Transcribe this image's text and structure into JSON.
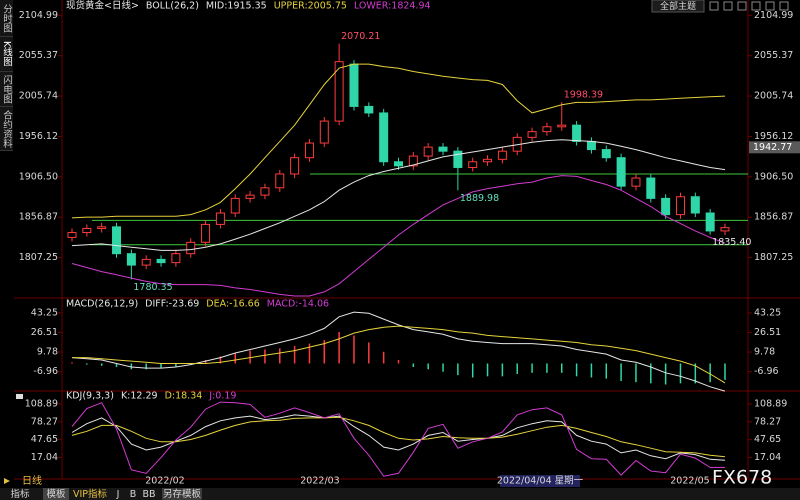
{
  "app": {
    "tabs": [
      "分时图",
      "K线图",
      "闪电图",
      "合约资料"
    ],
    "theme_button": "全部主题",
    "period": "日线",
    "toolbar": [
      "指标",
      "模板",
      "VIP指标",
      "J",
      "B",
      "BB",
      "另存模板"
    ],
    "x_labels": [
      "2022/02",
      "2022/03",
      "2022/04/04 星期一",
      "2022/05"
    ],
    "watermark": "FX678"
  },
  "chart_data": [
    {
      "type": "candlestick",
      "title": "现货黄金<日线>",
      "indicator": "BOLL(26,2)",
      "up_color": "#ff3b3b",
      "down_color": "#2fd6a8",
      "open": [
        1832,
        1838,
        1843,
        1845,
        1812,
        1798,
        1805,
        1801,
        1812,
        1826,
        1848,
        1862,
        1880,
        1884,
        1893,
        1910,
        1930,
        1948,
        1975,
        2045,
        1993,
        1985,
        1925,
        1920,
        1932,
        1943,
        1938,
        1918,
        1925,
        1928,
        1938,
        1955,
        1962,
        1968,
        1970,
        1950,
        1940,
        1930,
        1895,
        1905,
        1880,
        1860,
        1882,
        1862,
        1840
      ],
      "high": [
        1843,
        1848,
        1850,
        1850,
        1817,
        1810,
        1810,
        1817,
        1831,
        1853,
        1867,
        1885,
        1889,
        1898,
        1915,
        1935,
        1953,
        1980,
        2070.21,
        2050,
        1998,
        1990,
        1930,
        1937,
        1948,
        1948,
        1943,
        1930,
        1933,
        1943,
        1960,
        1967,
        1973,
        1998.39,
        1975,
        1955,
        1945,
        1935,
        1910,
        1910,
        1885,
        1887,
        1887,
        1867,
        1849
      ],
      "low": [
        1827,
        1833,
        1838,
        1807,
        1780.35,
        1793,
        1796,
        1796,
        1807,
        1821,
        1843,
        1857,
        1875,
        1879,
        1888,
        1905,
        1925,
        1943,
        1970,
        1988,
        1980,
        1920,
        1915,
        1915,
        1927,
        1933,
        1889.98,
        1913,
        1920,
        1923,
        1933,
        1950,
        1957,
        1963,
        1945,
        1935,
        1925,
        1890,
        1890,
        1875,
        1855,
        1855,
        1857,
        1835.4,
        1835
      ],
      "close": [
        1838,
        1843,
        1845,
        1812,
        1798,
        1805,
        1801,
        1812,
        1826,
        1848,
        1862,
        1880,
        1884,
        1893,
        1910,
        1930,
        1948,
        1975,
        2048,
        1993,
        1985,
        1925,
        1920,
        1932,
        1943,
        1938,
        1918,
        1925,
        1928,
        1938,
        1955,
        1962,
        1968,
        1970,
        1950,
        1940,
        1930,
        1895,
        1905,
        1880,
        1860,
        1882,
        1862,
        1840,
        1844
      ],
      "series": [
        {
          "name": "MID:1915.35",
          "color": "#e6e6e6",
          "values": [
            1822,
            1823,
            1824,
            1822,
            1820,
            1818,
            1816,
            1816,
            1817,
            1820,
            1824,
            1830,
            1836,
            1843,
            1850,
            1858,
            1866,
            1876,
            1890,
            1900,
            1908,
            1913,
            1917,
            1921,
            1926,
            1931,
            1934,
            1937,
            1940,
            1943,
            1946,
            1949,
            1951,
            1952,
            1951,
            1950,
            1948,
            1944,
            1940,
            1935,
            1930,
            1926,
            1922,
            1918,
            1915.35
          ]
        },
        {
          "name": "UPPER:2005.75",
          "color": "#e6d23c",
          "values": [
            1856,
            1857,
            1857,
            1858,
            1858,
            1858,
            1858,
            1858,
            1860,
            1866,
            1875,
            1892,
            1910,
            1930,
            1950,
            1970,
            1995,
            2020,
            2040,
            2045,
            2045,
            2042,
            2040,
            2036,
            2033,
            2030,
            2028,
            2026,
            2025,
            2020,
            2000,
            1985,
            1990,
            1995,
            1998,
            1998,
            1999,
            2000,
            2001,
            2001,
            2002,
            2003,
            2004,
            2005,
            2005.75
          ]
        },
        {
          "name": "LOWER:1824.94",
          "color": "#d23cd2",
          "values": [
            1800,
            1795,
            1790,
            1786,
            1782,
            1778,
            1775,
            1774,
            1774,
            1774,
            1773,
            1770,
            1768,
            1765,
            1762,
            1760,
            1760,
            1765,
            1775,
            1790,
            1805,
            1820,
            1835,
            1848,
            1860,
            1872,
            1880,
            1888,
            1892,
            1895,
            1898,
            1900,
            1905,
            1908,
            1907,
            1902,
            1897,
            1890,
            1880,
            1870,
            1858,
            1849,
            1840,
            1832,
            1824.94
          ]
        }
      ],
      "annotations": [
        "2070.21",
        "1998.39",
        "1889.98",
        "1780.35",
        "1835.40"
      ],
      "hlines": [
        1910,
        1853,
        1823
      ],
      "hline_color": "#3cc83c",
      "last_price": 1942.77,
      "ylim": [
        1760,
        2114
      ],
      "yticks": [
        2104.99,
        2055.37,
        2005.74,
        1956.12,
        {
          "value": 1906.5,
          "label": "1906.50"
        },
        1856.87,
        1807.25
      ]
    },
    {
      "type": "macd",
      "title": "MACD(26,12,9)",
      "series": [
        {
          "name": "DIFF:-23.69",
          "color": "#e6e6e6",
          "values": [
            5,
            4,
            3,
            0,
            -3,
            -4,
            -4,
            -3,
            -1,
            2,
            5,
            9,
            12,
            15,
            18,
            21,
            25,
            30,
            40,
            44,
            43,
            38,
            33,
            29,
            27,
            25,
            21,
            19,
            18,
            17,
            17,
            17,
            16,
            15,
            12,
            10,
            8,
            3,
            1,
            -3,
            -8,
            -11,
            -15,
            -20,
            -23.69
          ]
        },
        {
          "name": "DEA:-16.66",
          "color": "#e6d23c",
          "values": [
            5,
            5,
            4,
            3,
            2,
            1,
            0,
            0,
            0,
            0,
            1,
            3,
            5,
            7,
            9,
            11,
            14,
            17,
            21,
            26,
            29,
            31,
            32,
            31,
            30,
            29,
            27,
            26,
            24,
            23,
            22,
            21,
            20,
            19,
            18,
            16,
            15,
            13,
            11,
            8,
            5,
            2,
            -2,
            -9,
            -16.66
          ]
        }
      ],
      "bars": {
        "name": "MACD:-14.06",
        "color": "#d23cd2",
        "up_color": "#ff3b3b",
        "down_color": "#2fd6a8",
        "values": [
          1,
          -1,
          -2,
          -3,
          -5,
          -5,
          -4,
          -3,
          -1,
          3,
          6,
          9,
          11,
          12,
          13,
          15,
          17,
          20,
          27,
          24,
          18,
          10,
          3,
          -3,
          -5,
          -7,
          -10,
          -12,
          -11,
          -11,
          -9,
          -8,
          -8,
          -8,
          -11,
          -12,
          -13,
          -15,
          -16,
          -17,
          -18,
          -17,
          -17,
          -16,
          -14.06
        ]
      },
      "ylim": [
        -21,
        47.5
      ],
      "yticks": [
        43.25,
        26.51,
        9.78,
        -6.96
      ]
    },
    {
      "type": "line",
      "title": "KDJ(9,3,3)",
      "series": [
        {
          "name": "K:12.29",
          "color": "#e6e6e6",
          "values": [
            60,
            75,
            85,
            70,
            40,
            30,
            35,
            45,
            55,
            70,
            80,
            85,
            88,
            82,
            85,
            90,
            88,
            85,
            88,
            70,
            55,
            35,
            30,
            40,
            55,
            60,
            45,
            48,
            50,
            55,
            68,
            75,
            80,
            78,
            55,
            45,
            40,
            25,
            30,
            20,
            15,
            25,
            22,
            14,
            12.29
          ]
        },
        {
          "name": "D:18.34",
          "color": "#e6d23c",
          "values": [
            55,
            62,
            72,
            72,
            62,
            50,
            44,
            44,
            48,
            55,
            64,
            72,
            78,
            80,
            81,
            84,
            85,
            85,
            86,
            80,
            72,
            60,
            50,
            47,
            49,
            53,
            51,
            50,
            50,
            52,
            57,
            63,
            69,
            72,
            67,
            60,
            53,
            44,
            39,
            33,
            27,
            26,
            25,
            21,
            18.34
          ]
        },
        {
          "name": "J:0.19",
          "color": "#d23cd2",
          "values": [
            70,
            101,
            111,
            66,
            -4,
            -10,
            17,
            47,
            69,
            100,
            112,
            111,
            108,
            86,
            93,
            102,
            94,
            85,
            92,
            50,
            21,
            -15,
            -10,
            26,
            67,
            74,
            33,
            44,
            50,
            61,
            90,
            99,
            102,
            90,
            31,
            15,
            14,
            -13,
            12,
            -6,
            -9,
            23,
            16,
            0,
            0.19
          ]
        }
      ],
      "ylim": [
        -18,
        119
      ],
      "yticks": [
        108.89,
        78.27,
        47.65,
        17.04
      ]
    }
  ]
}
